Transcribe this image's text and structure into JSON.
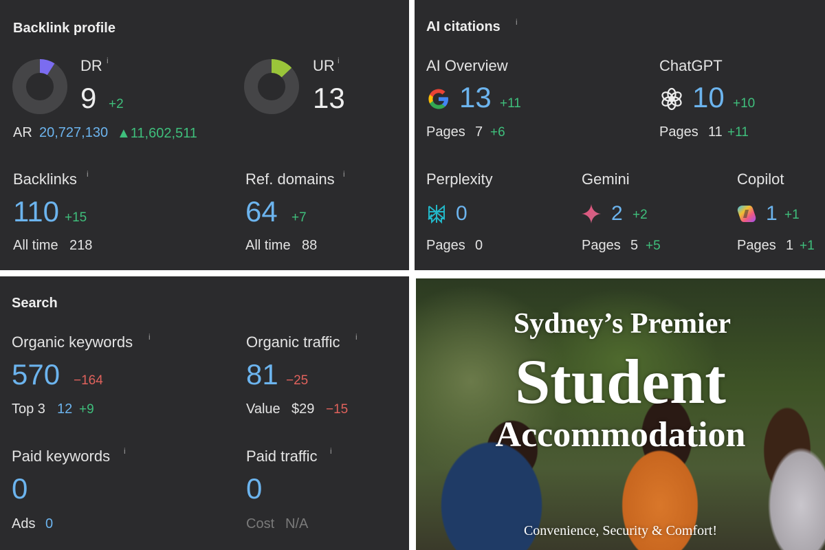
{
  "backlink_profile": {
    "title": "Backlink profile",
    "dr": {
      "label": "DR",
      "value": "9",
      "delta": "+2",
      "gauge_fraction": 0.09,
      "color": "#7b6cf0"
    },
    "ur": {
      "label": "UR",
      "value": "13",
      "gauge_fraction": 0.13,
      "color": "#9ac53a"
    },
    "ar": {
      "label": "AR",
      "value": "20,727,130",
      "delta": "▲11,602,511"
    },
    "backlinks": {
      "label": "Backlinks",
      "value": "110",
      "delta": "+15",
      "alltime_label": "All time",
      "alltime": "218"
    },
    "ref_domains": {
      "label": "Ref. domains",
      "value": "64",
      "delta": "+7",
      "alltime_label": "All time",
      "alltime": "88"
    },
    "info": "i"
  },
  "ai_citations": {
    "title": "AI citations",
    "pages_label": "Pages",
    "ai_overview": {
      "label": "AI Overview",
      "icon": "google-icon",
      "value": "13",
      "delta": "+11",
      "pages": "7",
      "pages_delta": "+6"
    },
    "chatgpt": {
      "label": "ChatGPT",
      "icon": "chatgpt-icon",
      "value": "10",
      "delta": "+10",
      "pages": "11",
      "pages_delta": "+11"
    },
    "perplexity": {
      "label": "Perplexity",
      "icon": "perplexity-icon",
      "value": "0",
      "pages": "0"
    },
    "gemini": {
      "label": "Gemini",
      "icon": "gemini-icon",
      "value": "2",
      "delta": "+2",
      "pages": "5",
      "pages_delta": "+5"
    },
    "copilot": {
      "label": "Copilot",
      "icon": "copilot-icon",
      "value": "1",
      "delta": "+1",
      "pages": "1",
      "pages_delta": "+1"
    }
  },
  "search": {
    "title": "Search",
    "organic_keywords": {
      "label": "Organic keywords",
      "value": "570",
      "delta": "−164",
      "top3_label": "Top 3",
      "top3": "12",
      "top3_delta": "+9"
    },
    "organic_traffic": {
      "label": "Organic traffic",
      "value": "81",
      "delta": "−25",
      "value_label": "Value",
      "value_amount": "$29",
      "value_delta": "−15"
    },
    "paid_keywords": {
      "label": "Paid keywords",
      "value": "0",
      "ads_label": "Ads",
      "ads": "0"
    },
    "paid_traffic": {
      "label": "Paid traffic",
      "value": "0",
      "cost_label": "Cost",
      "cost": "N/A"
    }
  },
  "hero": {
    "line1": "Sydney’s Premier",
    "line2": "Student",
    "line3": "Accommodation",
    "tagline": "Convenience, Security & Comfort!"
  },
  "colors": {
    "positive": "#3fbf7c",
    "negative": "#e0625c",
    "metric": "#6cb4ee",
    "panel": "#2b2b2d"
  }
}
